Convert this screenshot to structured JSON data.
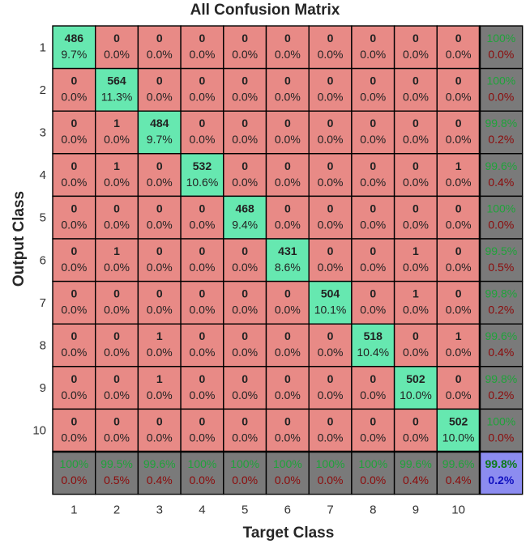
{
  "chart_data": {
    "type": "heatmap",
    "title": "All Confusion Matrix",
    "xlabel": "Target Class",
    "ylabel": "Output Class",
    "x_tick_labels": [
      "1",
      "2",
      "3",
      "4",
      "5",
      "6",
      "7",
      "8",
      "9",
      "10"
    ],
    "y_tick_labels": [
      "1",
      "2",
      "3",
      "4",
      "5",
      "6",
      "7",
      "8",
      "9",
      "10"
    ],
    "counts": [
      [
        486,
        0,
        0,
        0,
        0,
        0,
        0,
        0,
        0,
        0
      ],
      [
        0,
        564,
        0,
        0,
        0,
        0,
        0,
        0,
        0,
        0
      ],
      [
        0,
        1,
        484,
        0,
        0,
        0,
        0,
        0,
        0,
        0
      ],
      [
        0,
        1,
        0,
        532,
        0,
        0,
        0,
        0,
        0,
        1
      ],
      [
        0,
        0,
        0,
        0,
        468,
        0,
        0,
        0,
        0,
        0
      ],
      [
        0,
        1,
        0,
        0,
        0,
        431,
        0,
        0,
        1,
        0
      ],
      [
        0,
        0,
        0,
        0,
        0,
        0,
        504,
        0,
        1,
        0
      ],
      [
        0,
        0,
        1,
        0,
        0,
        0,
        0,
        518,
        0,
        1
      ],
      [
        0,
        0,
        1,
        0,
        0,
        0,
        0,
        0,
        502,
        0
      ],
      [
        0,
        0,
        0,
        0,
        0,
        0,
        0,
        0,
        0,
        502
      ]
    ],
    "cell_percents": [
      [
        "9.7%",
        "0.0%",
        "0.0%",
        "0.0%",
        "0.0%",
        "0.0%",
        "0.0%",
        "0.0%",
        "0.0%",
        "0.0%"
      ],
      [
        "0.0%",
        "11.3%",
        "0.0%",
        "0.0%",
        "0.0%",
        "0.0%",
        "0.0%",
        "0.0%",
        "0.0%",
        "0.0%"
      ],
      [
        "0.0%",
        "0.0%",
        "9.7%",
        "0.0%",
        "0.0%",
        "0.0%",
        "0.0%",
        "0.0%",
        "0.0%",
        "0.0%"
      ],
      [
        "0.0%",
        "0.0%",
        "0.0%",
        "10.6%",
        "0.0%",
        "0.0%",
        "0.0%",
        "0.0%",
        "0.0%",
        "0.0%"
      ],
      [
        "0.0%",
        "0.0%",
        "0.0%",
        "0.0%",
        "9.4%",
        "0.0%",
        "0.0%",
        "0.0%",
        "0.0%",
        "0.0%"
      ],
      [
        "0.0%",
        "0.0%",
        "0.0%",
        "0.0%",
        "0.0%",
        "8.6%",
        "0.0%",
        "0.0%",
        "0.0%",
        "0.0%"
      ],
      [
        "0.0%",
        "0.0%",
        "0.0%",
        "0.0%",
        "0.0%",
        "0.0%",
        "10.1%",
        "0.0%",
        "0.0%",
        "0.0%"
      ],
      [
        "0.0%",
        "0.0%",
        "0.0%",
        "0.0%",
        "0.0%",
        "0.0%",
        "0.0%",
        "10.4%",
        "0.0%",
        "0.0%"
      ],
      [
        "0.0%",
        "0.0%",
        "0.0%",
        "0.0%",
        "0.0%",
        "0.0%",
        "0.0%",
        "0.0%",
        "10.0%",
        "0.0%"
      ],
      [
        "0.0%",
        "0.0%",
        "0.0%",
        "0.0%",
        "0.0%",
        "0.0%",
        "0.0%",
        "0.0%",
        "0.0%",
        "10.0%"
      ]
    ],
    "row_summary": [
      [
        "100%",
        "0.0%"
      ],
      [
        "100%",
        "0.0%"
      ],
      [
        "99.8%",
        "0.2%"
      ],
      [
        "99.6%",
        "0.4%"
      ],
      [
        "100%",
        "0.0%"
      ],
      [
        "99.5%",
        "0.5%"
      ],
      [
        "99.8%",
        "0.2%"
      ],
      [
        "99.6%",
        "0.4%"
      ],
      [
        "99.8%",
        "0.2%"
      ],
      [
        "100%",
        "0.0%"
      ]
    ],
    "col_summary": [
      [
        "100%",
        "0.0%"
      ],
      [
        "99.5%",
        "0.5%"
      ],
      [
        "99.6%",
        "0.4%"
      ],
      [
        "100%",
        "0.0%"
      ],
      [
        "100%",
        "0.0%"
      ],
      [
        "100%",
        "0.0%"
      ],
      [
        "100%",
        "0.0%"
      ],
      [
        "100%",
        "0.0%"
      ],
      [
        "99.6%",
        "0.4%"
      ],
      [
        "99.6%",
        "0.4%"
      ]
    ],
    "overall": [
      "99.8%",
      "0.2%"
    ],
    "colors": {
      "correct": "#66e8b0",
      "incorrect": "#e88a86",
      "summary_bg": "#7a7a7a",
      "summary_good": "#1fa33a",
      "summary_bad": "#8c0a0a",
      "overall_bg": "#8c8cf0",
      "overall_good": "#0d7a18",
      "overall_bad": "#1010c0",
      "text": "#222222"
    },
    "grid": true
  }
}
